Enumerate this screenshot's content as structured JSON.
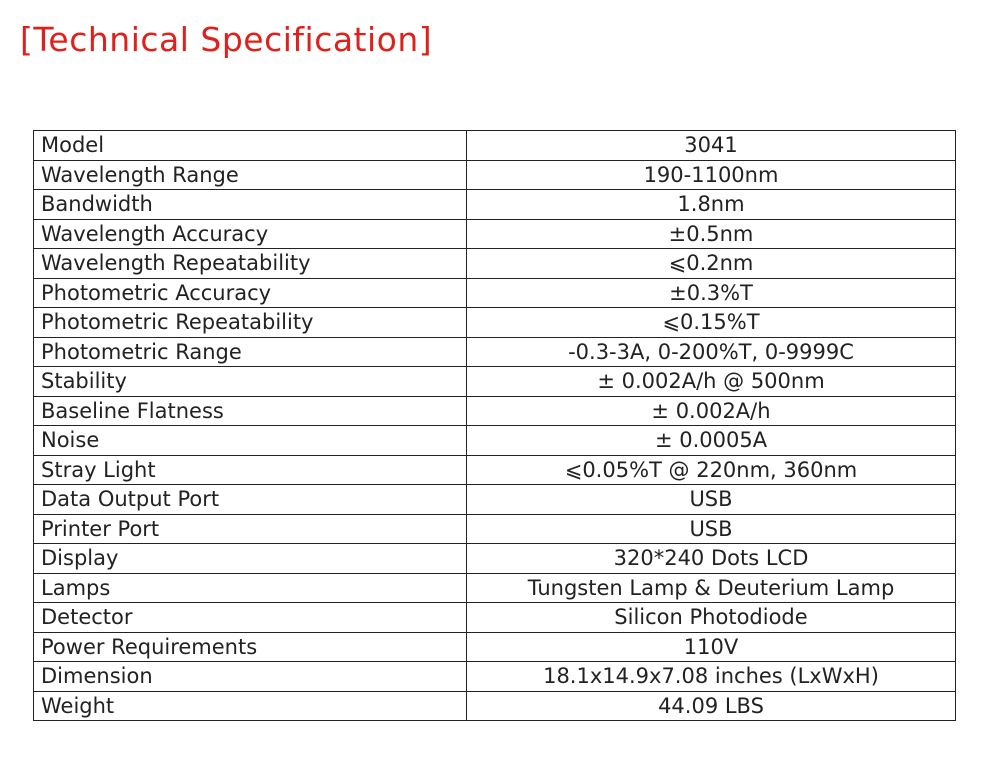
{
  "header": {
    "title": "[Technical Specification]"
  },
  "table": {
    "rows": [
      [
        "Model",
        "3041"
      ],
      [
        "Wavelength Range",
        "190-1100nm"
      ],
      [
        "Bandwidth",
        "1.8nm"
      ],
      [
        "Wavelength Accuracy",
        "±0.5nm"
      ],
      [
        "Wavelength Repeatability",
        "⩽0.2nm"
      ],
      [
        "Photometric Accuracy",
        "±0.3%T"
      ],
      [
        "Photometric Repeatability",
        "⩽0.15%T"
      ],
      [
        "Photometric Range",
        "-0.3-3A, 0-200%T, 0-9999C"
      ],
      [
        "Stability",
        "± 0.002A/h @ 500nm"
      ],
      [
        "Baseline Flatness",
        "± 0.002A/h"
      ],
      [
        "Noise",
        "± 0.0005A"
      ],
      [
        "Stray Light",
        "⩽0.05%T @ 220nm, 360nm"
      ],
      [
        "Data Output Port",
        "USB"
      ],
      [
        "Printer Port",
        "USB"
      ],
      [
        "Display",
        "320*240 Dots LCD"
      ],
      [
        "Lamps",
        "Tungsten Lamp & Deuterium Lamp"
      ],
      [
        "Detector",
        "Silicon Photodiode"
      ],
      [
        "Power Requirements",
        "110V"
      ],
      [
        "Dimension",
        "18.1x14.9x7.08 inches (LxWxH)"
      ],
      [
        "Weight",
        "44.09 LBS"
      ]
    ]
  }
}
